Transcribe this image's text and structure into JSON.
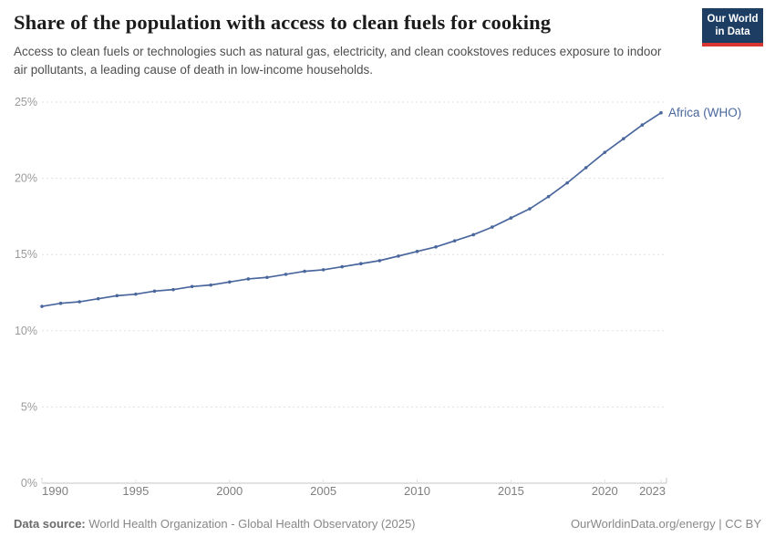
{
  "header": {
    "title": "Share of the population with access to clean fuels for cooking",
    "subtitle": "Access to clean fuels or technologies such as natural gas, electricity, and clean cookstoves reduces exposure to indoor air pollutants, a leading cause of death in low-income households.",
    "logo": {
      "line1": "Our World",
      "line2": "in Data"
    }
  },
  "chart_data": {
    "type": "line",
    "title": "Share of the population with access to clean fuels for cooking",
    "subtitle": "Access to clean fuels or technologies such as natural gas, electricity, and clean cookstoves reduces exposure to indoor air pollutants, a leading cause of death in low-income households.",
    "x": [
      1990,
      1991,
      1992,
      1993,
      1994,
      1995,
      1996,
      1997,
      1998,
      1999,
      2000,
      2001,
      2002,
      2003,
      2004,
      2005,
      2006,
      2007,
      2008,
      2009,
      2010,
      2011,
      2012,
      2013,
      2014,
      2015,
      2016,
      2017,
      2018,
      2019,
      2020,
      2021,
      2022,
      2023
    ],
    "series": [
      {
        "name": "Africa (WHO)",
        "color": "#4a679d",
        "values": [
          11.6,
          11.8,
          11.9,
          12.1,
          12.3,
          12.4,
          12.6,
          12.7,
          12.9,
          13.0,
          13.2,
          13.4,
          13.5,
          13.7,
          13.9,
          14.0,
          14.2,
          14.4,
          14.6,
          14.9,
          15.2,
          15.5,
          15.9,
          16.3,
          16.8,
          17.4,
          18.0,
          18.8,
          19.7,
          20.7,
          21.7,
          22.6,
          23.5,
          24.3
        ]
      }
    ],
    "xlabel": "",
    "ylabel": "",
    "xlim": [
      1990,
      2023
    ],
    "ylim": [
      0,
      25
    ],
    "y_tick_values": [
      0,
      5,
      10,
      15,
      20,
      25
    ],
    "y_tick_labels": [
      "0%",
      "5%",
      "10%",
      "15%",
      "20%",
      "25%"
    ],
    "x_tick_values": [
      1990,
      1995,
      2000,
      2005,
      2010,
      2015,
      2020,
      2023
    ],
    "x_tick_labels": [
      "1990",
      "1995",
      "2000",
      "2005",
      "2010",
      "2015",
      "2020",
      "2023"
    ],
    "grid": "horizontal-dashed",
    "legend_position": "end-of-line-label"
  },
  "footer": {
    "source_label": "Data source:",
    "source_text": " World Health Organization - Global Health Observatory (2025)",
    "right_text": "OurWorldinData.org/energy | CC BY"
  },
  "colors": {
    "series": "#4a679d",
    "grid": "#e1e1e1",
    "axis": "#c6c6c6",
    "y_tick_text": "#9b9b9b",
    "x_tick_text": "#7f7f7f",
    "logo_bg": "#1d3d63",
    "logo_stripe": "#d83731",
    "title_text": "#1b1b1b",
    "subtitle_text": "#4e4e4e",
    "footer_text": "#888888"
  }
}
